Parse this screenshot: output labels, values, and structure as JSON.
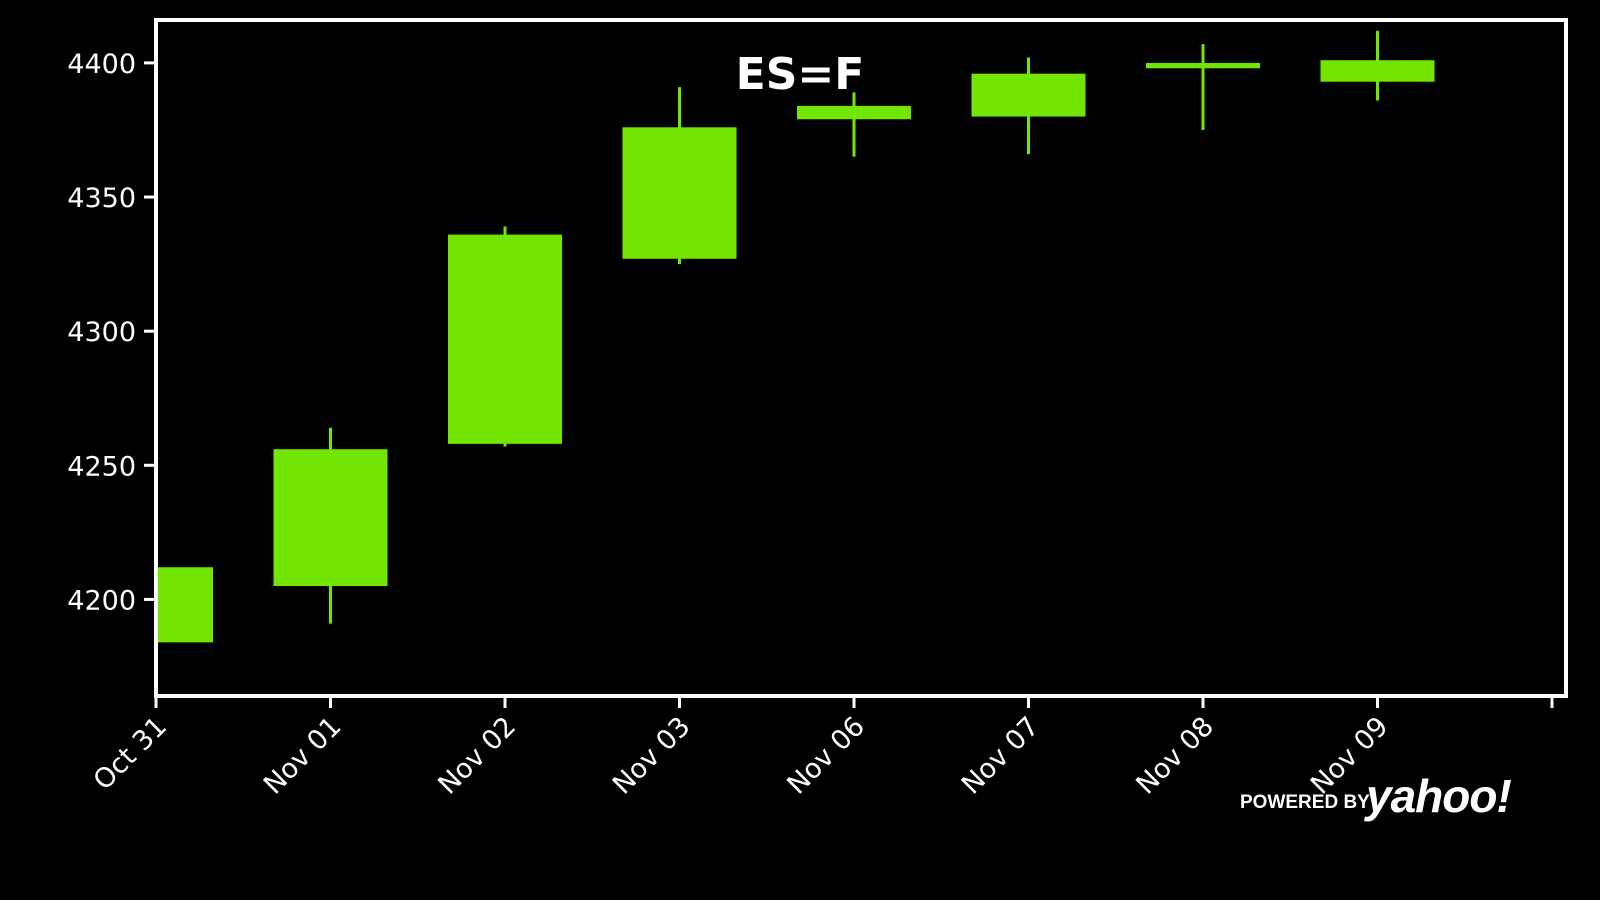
{
  "chart_data": {
    "type": "candlestick",
    "title": "ES=F",
    "xlabel": "",
    "ylabel": "",
    "ylim": [
      4164,
      4416
    ],
    "yticks": [
      4200,
      4250,
      4300,
      4350,
      4400
    ],
    "grid": false,
    "colors": {
      "background": "#000000",
      "up": "#72e600",
      "axis": "#ffffff",
      "text": "#ffffff"
    },
    "categories": [
      "Oct 31",
      "Nov 01",
      "Nov 02",
      "Nov 03",
      "Nov 06",
      "Nov 07",
      "Nov 08",
      "Nov 09"
    ],
    "candles": [
      {
        "date": "Oct 31",
        "open": 4184,
        "high": 4212,
        "low": 4184,
        "close": 4212
      },
      {
        "date": "Nov 01",
        "open": 4205,
        "high": 4264,
        "low": 4191,
        "close": 4256
      },
      {
        "date": "Nov 02",
        "open": 4258,
        "high": 4339,
        "low": 4257,
        "close": 4336
      },
      {
        "date": "Nov 03",
        "open": 4327,
        "high": 4391,
        "low": 4325,
        "close": 4376
      },
      {
        "date": "Nov 06",
        "open": 4379,
        "high": 4389,
        "low": 4365,
        "close": 4384
      },
      {
        "date": "Nov 07",
        "open": 4380,
        "high": 4402,
        "low": 4366,
        "close": 4396
      },
      {
        "date": "Nov 08",
        "open": 4398,
        "high": 4407,
        "low": 4375,
        "close": 4400
      },
      {
        "date": "Nov 09",
        "open": 4393,
        "high": 4412,
        "low": 4386,
        "close": 4401
      }
    ]
  },
  "branding": {
    "powered_by": "POWERED BY",
    "logo": "yahoo!"
  }
}
